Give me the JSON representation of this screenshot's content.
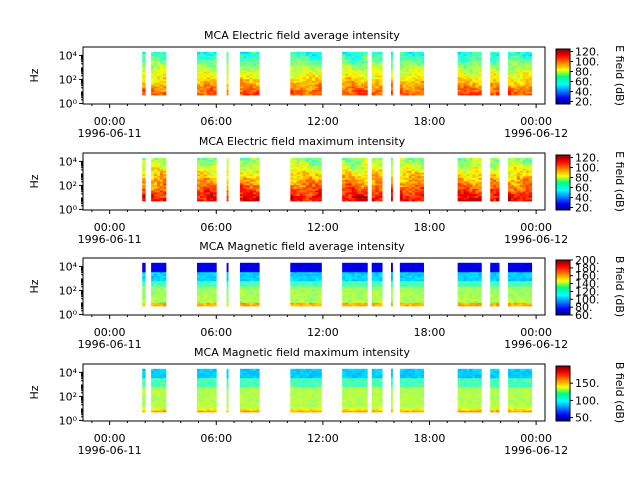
{
  "chart_data": [
    {
      "type": "heatmap",
      "title": "MCA  Electric field average intensity",
      "ylabel": "Hz",
      "y_scale": "log",
      "y_tick_labels": [
        "10⁰",
        "10²",
        "10⁴"
      ],
      "x_tick_labels": [
        "00:00",
        "06:00",
        "12:00",
        "18:00",
        "00:00"
      ],
      "x_date_start": "1996-06-11",
      "x_date_end": "1996-06-12",
      "colorbar": {
        "label": "E field (dB)",
        "range": [
          15,
          125
        ],
        "ticks": [
          "20.",
          "40.",
          "60.",
          "80.",
          "100.",
          "120."
        ]
      },
      "intensity_profile": "electric-average"
    },
    {
      "type": "heatmap",
      "title": "MCA  Electric field maximum intensity",
      "ylabel": "Hz",
      "y_scale": "log",
      "y_tick_labels": [
        "10⁰",
        "10²",
        "10⁴"
      ],
      "x_tick_labels": [
        "00:00",
        "06:00",
        "12:00",
        "18:00",
        "00:00"
      ],
      "x_date_start": "1996-06-11",
      "x_date_end": "1996-06-12",
      "colorbar": {
        "label": "E field (dB)",
        "range": [
          15,
          125
        ],
        "ticks": [
          "20.",
          "40.",
          "60.",
          "80.",
          "100.",
          "120."
        ]
      },
      "intensity_profile": "electric-maximum"
    },
    {
      "type": "heatmap",
      "title": "MCA  Magnetic field average intensity",
      "ylabel": "Hz",
      "y_scale": "log",
      "y_tick_labels": [
        "10⁰",
        "10²",
        "10⁴"
      ],
      "x_tick_labels": [
        "00:00",
        "06:00",
        "12:00",
        "18:00",
        "00:00"
      ],
      "x_date_start": "1996-06-11",
      "x_date_end": "1996-06-12",
      "colorbar": {
        "label": "B field (dB)",
        "range": [
          60,
          200
        ],
        "ticks": [
          "60.",
          "80.",
          "100.",
          "120.",
          "140.",
          "160.",
          "180.",
          "200."
        ]
      },
      "intensity_profile": "magnetic-average"
    },
    {
      "type": "heatmap",
      "title": "MCA  Magnetic field maximum intensity",
      "ylabel": "Hz",
      "y_scale": "log",
      "y_tick_labels": [
        "10⁰",
        "10²",
        "10⁴"
      ],
      "x_tick_labels": [
        "00:00",
        "06:00",
        "12:00",
        "18:00",
        "00:00"
      ],
      "x_date_start": "1996-06-11",
      "x_date_end": "1996-06-12",
      "colorbar": {
        "label": "B field (dB)",
        "range": [
          40,
          200
        ],
        "ticks": [
          "50.",
          "100.",
          "150."
        ]
      },
      "intensity_profile": "magnetic-maximum"
    }
  ],
  "data_blocks_utc": [
    [
      "01:50",
      "02:00"
    ],
    [
      "02:20",
      "03:10"
    ],
    [
      "04:55",
      "06:00"
    ],
    [
      "06:35",
      "06:40"
    ],
    [
      "07:20",
      "08:25"
    ],
    [
      "10:10",
      "11:55"
    ],
    [
      "13:05",
      "14:30"
    ],
    [
      "14:45",
      "15:20"
    ],
    [
      "15:50",
      "15:55"
    ],
    [
      "16:20",
      "17:40"
    ],
    [
      "19:35",
      "20:55"
    ],
    [
      "21:25",
      "21:55"
    ],
    [
      "22:25",
      "23:45"
    ]
  ]
}
